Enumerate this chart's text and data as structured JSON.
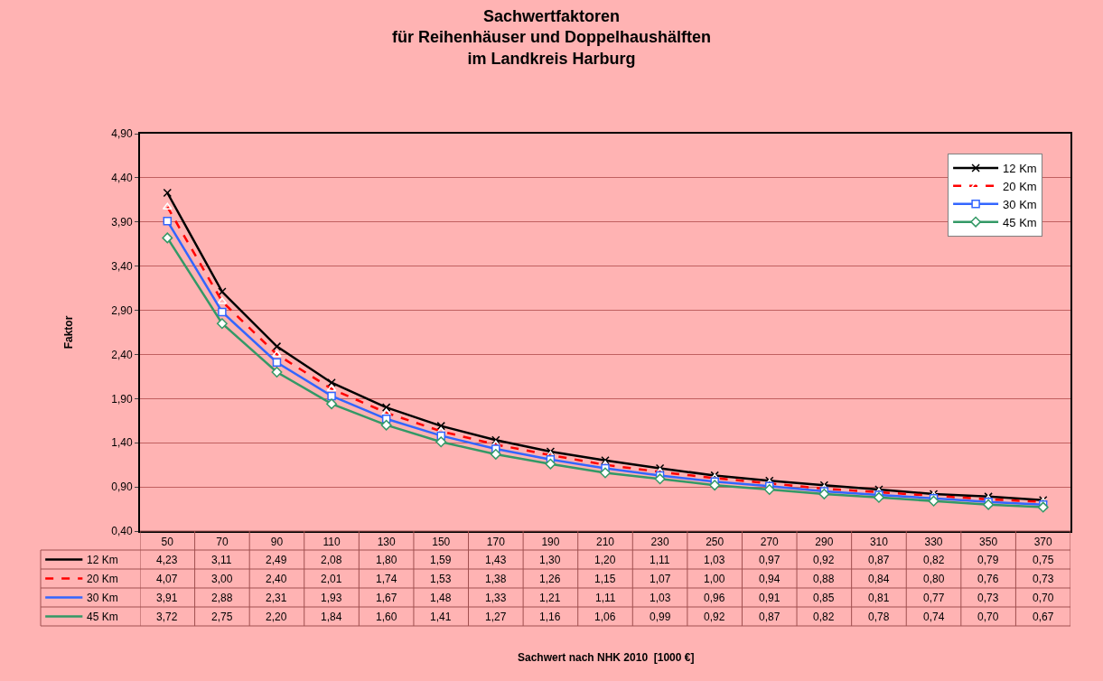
{
  "chart_data": {
    "type": "line",
    "title": "Sachwertfaktoren\nfür Reihenhäuser und Doppelhaushälften\nim Landkreis Harburg",
    "ylabel": "Faktor",
    "annotations": [
      "Sachwert nach NHK 2010  [1000 €]"
    ],
    "categories": [
      "50",
      "70",
      "90",
      "110",
      "130",
      "150",
      "170",
      "190",
      "210",
      "230",
      "250",
      "270",
      "290",
      "310",
      "330",
      "350",
      "370"
    ],
    "series": [
      {
        "name": "12 Km",
        "color": "#000000",
        "marker": "cross",
        "line_style": "solid",
        "values": [
          4.23,
          3.11,
          2.49,
          2.08,
          1.8,
          1.59,
          1.43,
          1.3,
          1.2,
          1.11,
          1.03,
          0.97,
          0.92,
          0.87,
          0.82,
          0.79,
          0.75
        ],
        "value_labels": [
          "4,23",
          "3,11",
          "2,49",
          "2,08",
          "1,80",
          "1,59",
          "1,43",
          "1,30",
          "1,20",
          "1,11",
          "1,03",
          "0,97",
          "0,92",
          "0,87",
          "0,82",
          "0,79",
          "0,75"
        ]
      },
      {
        "name": "20 Km",
        "color": "#ff0000",
        "marker": "triangle",
        "line_style": "dashed",
        "values": [
          4.07,
          3.0,
          2.4,
          2.01,
          1.74,
          1.53,
          1.38,
          1.26,
          1.15,
          1.07,
          1.0,
          0.94,
          0.88,
          0.84,
          0.8,
          0.76,
          0.73
        ],
        "value_labels": [
          "4,07",
          "3,00",
          "2,40",
          "2,01",
          "1,74",
          "1,53",
          "1,38",
          "1,26",
          "1,15",
          "1,07",
          "1,00",
          "0,94",
          "0,88",
          "0,84",
          "0,80",
          "0,76",
          "0,73"
        ]
      },
      {
        "name": "30 Km",
        "color": "#3366ff",
        "marker": "square",
        "line_style": "solid",
        "values": [
          3.91,
          2.88,
          2.31,
          1.93,
          1.67,
          1.48,
          1.33,
          1.21,
          1.11,
          1.03,
          0.96,
          0.91,
          0.85,
          0.81,
          0.77,
          0.73,
          0.7
        ],
        "value_labels": [
          "3,91",
          "2,88",
          "2,31",
          "1,93",
          "1,67",
          "1,48",
          "1,33",
          "1,21",
          "1,11",
          "1,03",
          "0,96",
          "0,91",
          "0,85",
          "0,81",
          "0,77",
          "0,73",
          "0,70"
        ]
      },
      {
        "name": "45 Km",
        "color": "#339966",
        "marker": "diamond",
        "line_style": "solid",
        "values": [
          3.72,
          2.75,
          2.2,
          1.84,
          1.6,
          1.41,
          1.27,
          1.16,
          1.06,
          0.99,
          0.92,
          0.87,
          0.82,
          0.78,
          0.74,
          0.7,
          0.67
        ],
        "value_labels": [
          "3,72",
          "2,75",
          "2,20",
          "1,84",
          "1,60",
          "1,41",
          "1,27",
          "1,16",
          "1,06",
          "0,99",
          "0,92",
          "0,87",
          "0,82",
          "0,78",
          "0,74",
          "0,70",
          "0,67"
        ]
      }
    ],
    "ylim": [
      0.4,
      4.9
    ],
    "yticks": [
      {
        "value": 0.4,
        "label": "0,40"
      },
      {
        "value": 0.9,
        "label": "0,90"
      },
      {
        "value": 1.4,
        "label": "1,40"
      },
      {
        "value": 1.9,
        "label": "1,90"
      },
      {
        "value": 2.4,
        "label": "2,40"
      },
      {
        "value": 2.9,
        "label": "2,90"
      },
      {
        "value": 3.4,
        "label": "3,40"
      },
      {
        "value": 3.9,
        "label": "3,90"
      },
      {
        "value": 4.4,
        "label": "4,40"
      },
      {
        "value": 4.9,
        "label": "4,90"
      }
    ],
    "grid": "y",
    "legend": "top right"
  }
}
